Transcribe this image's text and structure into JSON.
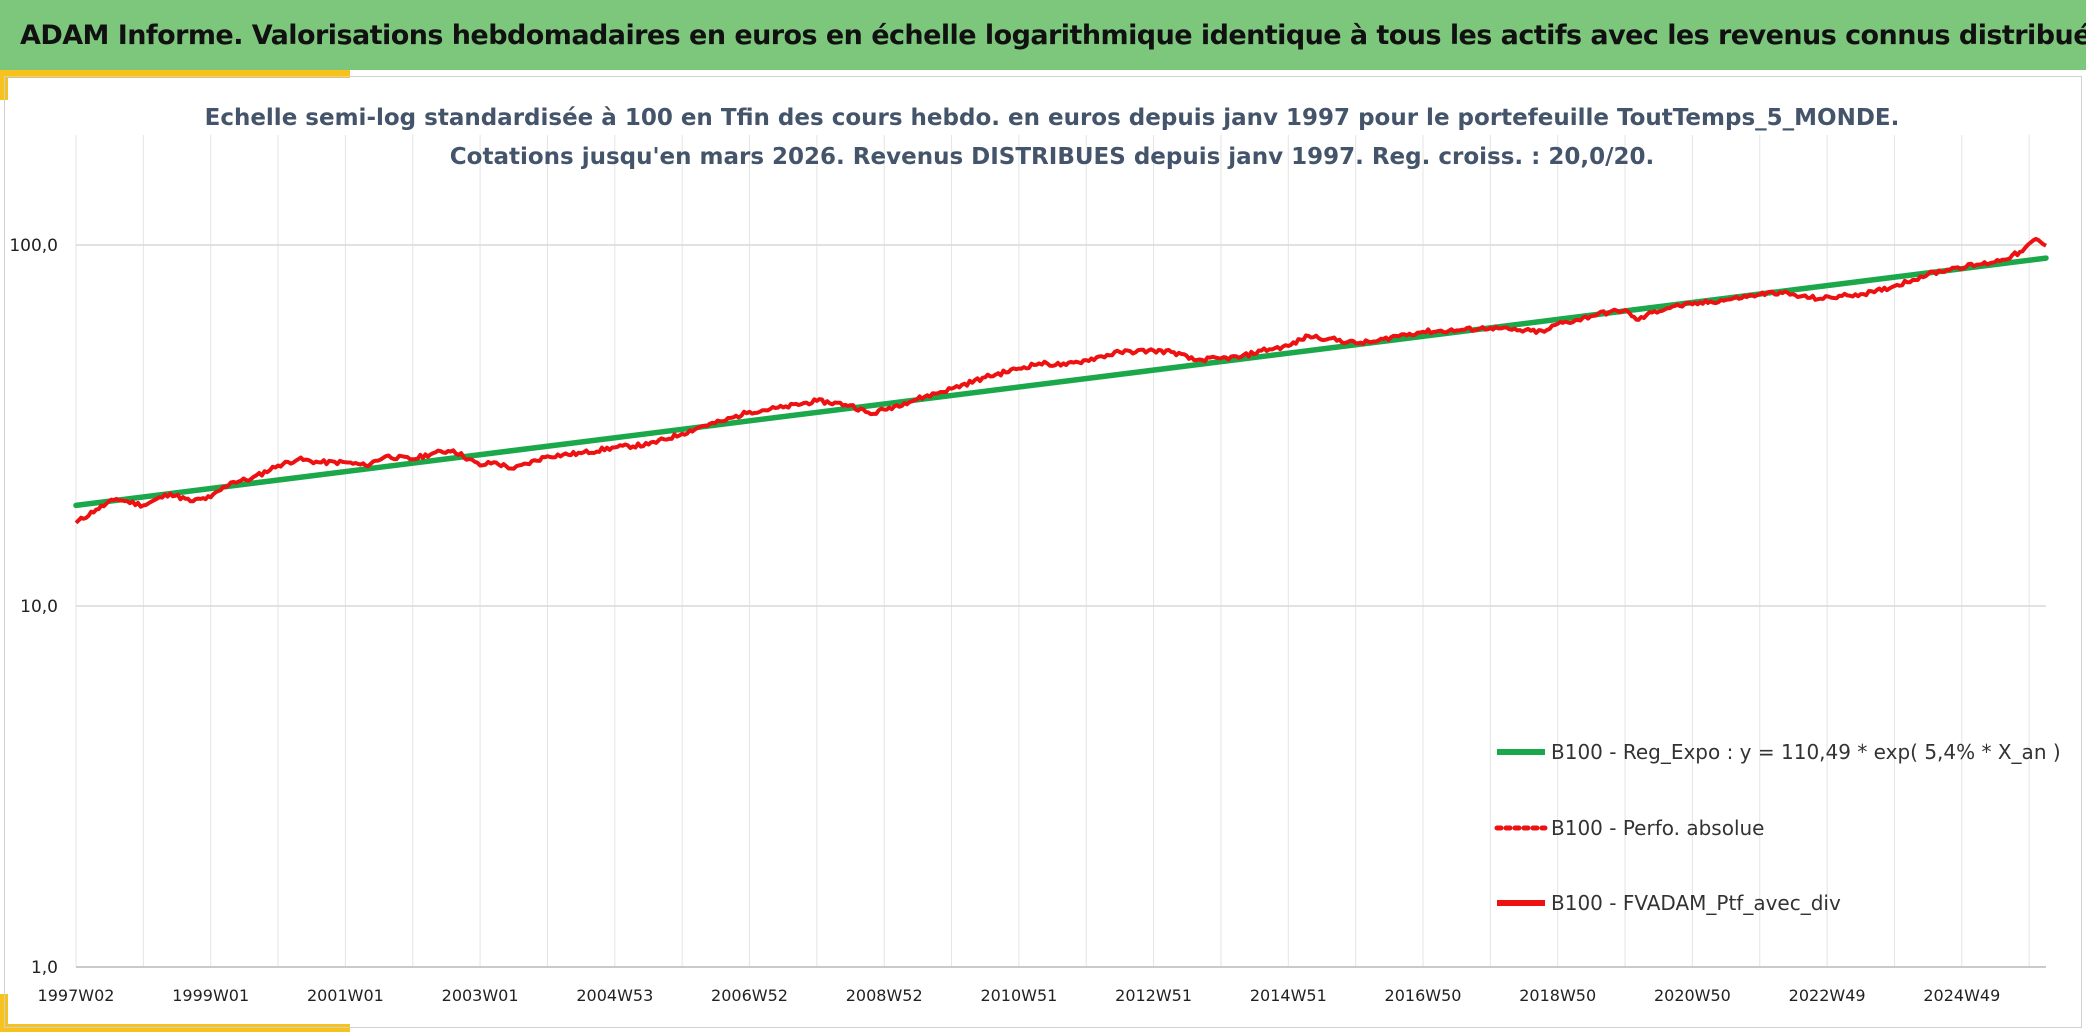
{
  "header": {
    "title": "ADAM Informe. Valorisations hebdomadaires en euros en échelle logarithmique identique à tous les actifs avec les revenus connus distribués"
  },
  "colors": {
    "banner": "#7dc77d",
    "accent": "#f7c21e",
    "regression": "#1aa84b",
    "series": "#ee1111"
  },
  "chart_data": {
    "type": "line",
    "y_scale": "log",
    "title": [
      "Echelle semi-log standardisée à 100 en Tfin des cours hebdo. en euros depuis janv 1997 pour le portefeuille ToutTemps_5_MONDE.",
      "Cotations jusqu'en mars 2026. Revenus DISTRIBUES depuis janv 1997. Reg. croiss. : 20,0/20."
    ],
    "xlabel": "",
    "ylabel": "",
    "ylim": [
      1,
      100
    ],
    "xlim": [
      1997.0,
      2026.25
    ],
    "y_ticks": [
      {
        "value": 100,
        "label": "100,0"
      },
      {
        "value": 10,
        "label": "10,0"
      },
      {
        "value": 1,
        "label": "1,0"
      }
    ],
    "x_ticks": [
      {
        "value": 1997.0,
        "label": "1997W02"
      },
      {
        "value": 1999.0,
        "label": "1999W01"
      },
      {
        "value": 2001.0,
        "label": "2001W01"
      },
      {
        "value": 2003.0,
        "label": "2003W01"
      },
      {
        "value": 2005.0,
        "label": "2004W53"
      },
      {
        "value": 2007.0,
        "label": "2006W52"
      },
      {
        "value": 2009.0,
        "label": "2008W52"
      },
      {
        "value": 2011.0,
        "label": "2010W51"
      },
      {
        "value": 2013.0,
        "label": "2012W51"
      },
      {
        "value": 2015.0,
        "label": "2014W51"
      },
      {
        "value": 2017.0,
        "label": "2016W50"
      },
      {
        "value": 2019.0,
        "label": "2018W50"
      },
      {
        "value": 2021.0,
        "label": "2020W50"
      },
      {
        "value": 2023.0,
        "label": "2022W49"
      },
      {
        "value": 2025.0,
        "label": "2024W49"
      }
    ],
    "series": [
      {
        "name": "B100 - Reg_Expo : y = 110,49 * exp( 5,4% *  X_an )",
        "style": "solid",
        "x": [
          1997.0,
          2026.25
        ],
        "values": [
          19.0,
          92.0
        ]
      },
      {
        "name": "B100 - Perfo. absolue",
        "style": "dotted",
        "x": [],
        "values": []
      },
      {
        "name": "B100 - FVADAM_Ptf_avec_div",
        "style": "solid",
        "x": [
          1997.0,
          1997.3,
          1997.6,
          1998.0,
          1998.4,
          1998.7,
          1999.0,
          1999.3,
          1999.6,
          2000.0,
          2000.3,
          2000.6,
          2001.0,
          2001.3,
          2001.6,
          2002.0,
          2002.3,
          2002.6,
          2003.0,
          2003.2,
          2003.5,
          2004.0,
          2004.5,
          2005.0,
          2005.5,
          2006.0,
          2006.3,
          2006.6,
          2007.0,
          2007.5,
          2008.0,
          2008.5,
          2008.8,
          2009.0,
          2009.3,
          2009.6,
          2010.0,
          2010.5,
          2011.0,
          2011.3,
          2011.7,
          2012.0,
          2012.5,
          2013.0,
          2013.3,
          2013.6,
          2014.0,
          2014.3,
          2014.6,
          2015.0,
          2015.3,
          2015.6,
          2016.0,
          2016.3,
          2016.6,
          2017.0,
          2017.5,
          2018.0,
          2018.4,
          2018.8,
          2019.0,
          2019.3,
          2019.6,
          2020.0,
          2020.1,
          2020.2,
          2020.4,
          2020.7,
          2021.0,
          2021.5,
          2022.0,
          2022.3,
          2022.6,
          2022.9,
          2023.3,
          2023.7,
          2024.0,
          2024.5,
          2024.9,
          2025.3,
          2025.6,
          2025.9,
          2026.1,
          2026.25
        ],
        "values": [
          17.0,
          18.5,
          19.8,
          19.0,
          20.5,
          19.5,
          20.0,
          22.0,
          22.5,
          24.5,
          25.5,
          25.0,
          25.0,
          24.5,
          26.0,
          25.5,
          26.5,
          27.0,
          24.5,
          25.0,
          24.0,
          26.0,
          26.5,
          27.5,
          28.0,
          30.0,
          31.5,
          32.5,
          34.5,
          35.5,
          37.0,
          36.0,
          34.0,
          35.0,
          36.5,
          38.0,
          40.0,
          43.0,
          45.5,
          47.0,
          46.5,
          48.0,
          50.5,
          51.0,
          50.5,
          48.0,
          48.5,
          49.0,
          51.0,
          52.5,
          56.0,
          55.0,
          53.5,
          54.0,
          56.0,
          57.5,
          58.0,
          59.0,
          58.0,
          57.5,
          60.5,
          62.0,
          64.5,
          66.0,
          63.5,
          62.0,
          65.0,
          67.5,
          68.5,
          70.5,
          73.0,
          74.0,
          72.0,
          71.0,
          72.5,
          74.0,
          77.0,
          83.0,
          86.5,
          88.5,
          91.0,
          96.0,
          104.0,
          99.5
        ]
      }
    ],
    "legend": {
      "position": "bottom-right"
    }
  }
}
